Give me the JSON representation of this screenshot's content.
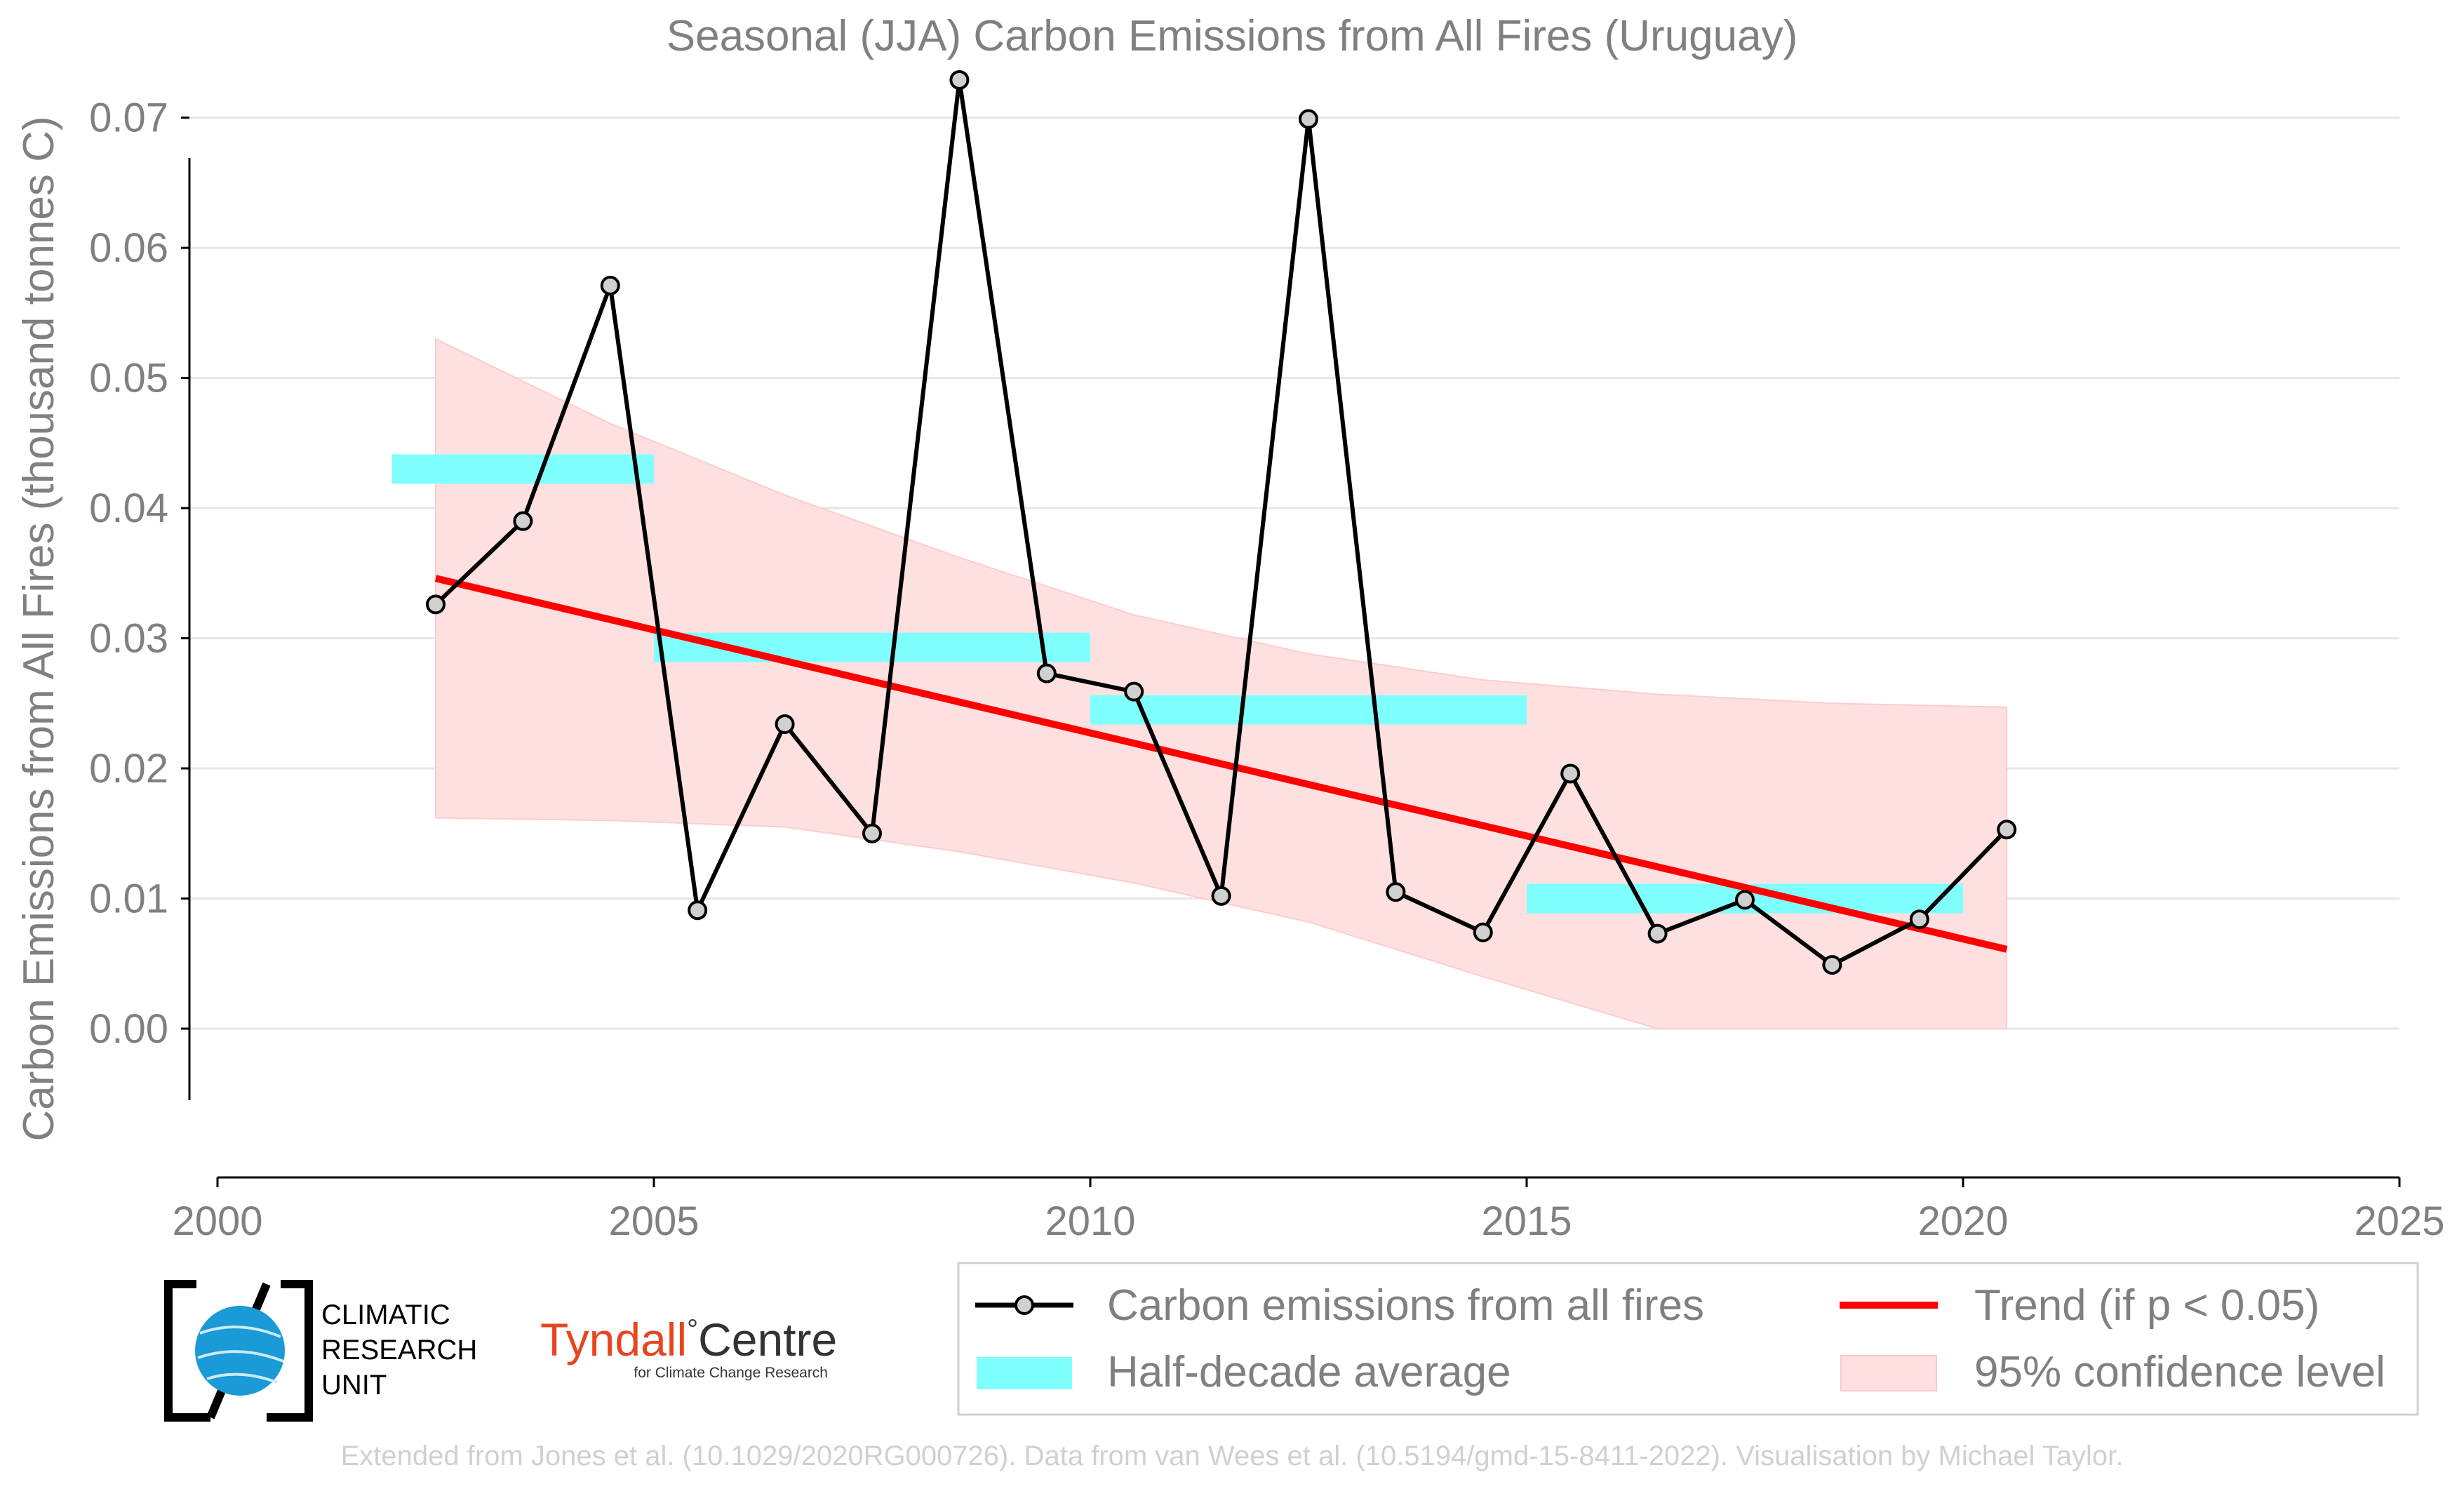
{
  "chart_data": {
    "type": "line",
    "title": "Seasonal (JJA) Carbon Emissions from All Fires (Uruguay)",
    "xlabel": "",
    "ylabel": "Carbon Emissions from All Fires (thousand tonnes C)",
    "xlim": [
      2000,
      2025
    ],
    "ylim": [
      -0.0055,
      0.075
    ],
    "x_ticks": [
      "2000",
      "2005",
      "2010",
      "2015",
      "2020",
      "2025"
    ],
    "y_ticks": [
      "0.00",
      "0.01",
      "0.02",
      "0.03",
      "0.04",
      "0.05",
      "0.06",
      "0.07"
    ],
    "grid": "horizontal",
    "series": [
      {
        "name": "Carbon emissions from all fires",
        "color": "#000000",
        "x": [
          2002.5,
          2003.5,
          2004.5,
          2005.5,
          2006.5,
          2007.5,
          2008.5,
          2009.5,
          2010.5,
          2011.5,
          2012.5,
          2013.5,
          2014.5,
          2015.5,
          2016.5,
          2017.5,
          2018.5,
          2019.5,
          2020.5
        ],
        "values": [
          0.0326,
          0.039,
          0.0571,
          0.0091,
          0.0234,
          0.015,
          0.0729,
          0.0273,
          0.0259,
          0.0102,
          0.0699,
          0.0105,
          0.0074,
          0.0196,
          0.0073,
          0.0099,
          0.0049,
          0.0084,
          0.0153
        ]
      },
      {
        "name": "Half-decade average",
        "color": "#80ffff",
        "segments": [
          {
            "x0": 2002.0,
            "x1": 2005.0,
            "value": 0.043
          },
          {
            "x0": 2005.0,
            "x1": 2010.0,
            "value": 0.0293
          },
          {
            "x0": 2010.0,
            "x1": 2015.0,
            "value": 0.0245
          },
          {
            "x0": 2015.0,
            "x1": 2020.0,
            "value": 0.01
          }
        ]
      },
      {
        "name": "Trend (if p < 0.05)",
        "color": "#ff0000",
        "x": [
          2002.5,
          2020.5
        ],
        "values": [
          0.0346,
          0.0061
        ]
      },
      {
        "name": "95% confidence level",
        "color": "#ffe0e0",
        "x": [
          2002.5,
          2004.5,
          2006.5,
          2008.5,
          2010.5,
          2012.5,
          2014.5,
          2016.5,
          2018.5,
          2020.5
        ],
        "upper": [
          0.053,
          0.0465,
          0.041,
          0.0362,
          0.0318,
          0.0288,
          0.0268,
          0.0257,
          0.025,
          0.0247
        ],
        "lower": [
          0.0162,
          0.016,
          0.0155,
          0.0136,
          0.0112,
          0.0082,
          0.004,
          0.0,
          0.0,
          0.0
        ]
      }
    ]
  },
  "legend": {
    "items": [
      "Carbon emissions from all fires",
      "Trend (if p < 0.05)",
      "Half-decade average",
      "95% confidence level"
    ]
  },
  "logos": {
    "cru": [
      "CLIMATIC",
      "RESEARCH",
      "UNIT"
    ],
    "tyndall_name": "Tyndall",
    "tyndall_degree": "°",
    "tyndall_centre": "Centre",
    "tyndall_sub": "for Climate Change Research"
  },
  "footer": "Extended from Jones et al. (10.1029/2020RG000726). Data from van Wees et al. (10.5194/gmd-15-8411-2022). Visualisation by Michael Taylor."
}
